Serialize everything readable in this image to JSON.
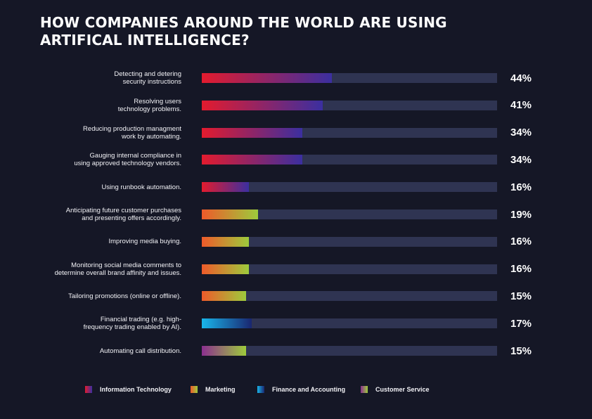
{
  "title_lines": [
    "HOW COMPANIES AROUND THE WORLD ARE USING",
    "ARTIFICAL INTELLIGENCE?"
  ],
  "colors": {
    "background": "#151726",
    "track": "#2f3452",
    "information_technology": [
      "#e31b2e",
      "#3b2fa0"
    ],
    "marketing": [
      "#ee5a2a",
      "#9ecb3c"
    ],
    "finance_and_accounting": [
      "#19b6ea",
      "#1a2670"
    ],
    "customer_service": [
      "#8b2f8f",
      "#9ecb3c"
    ]
  },
  "chart_data": {
    "type": "bar",
    "orientation": "horizontal",
    "unit": "%",
    "xlim": [
      0,
      100
    ],
    "grid": false,
    "legend_position": "bottom",
    "categories": [
      "Detecting and detering\nsecurity instructions",
      "Resolving users\ntechnology problems.",
      "Reducing production managment\nwork by automating.",
      "Gauging internal compliance in\nusing approved technology vendors.",
      "Using runbook automation.",
      "Anticipating future customer purchases\nand presenting offers accordingly.",
      "Improving media buying.",
      "Monitoring social media comments to\ndetermine overall brand affinity and issues.",
      "Tailoring promotions (online or offline).",
      "Financial trading (e.g. high-\nfrequency trading enabled by AI).",
      "Automating call distribution."
    ],
    "values": [
      44,
      41,
      34,
      34,
      16,
      19,
      16,
      16,
      15,
      17,
      15
    ],
    "value_labels": [
      "44%",
      "41%",
      "34%",
      "34%",
      "16%",
      "19%",
      "16%",
      "16%",
      "15%",
      "17%",
      "15%"
    ],
    "category_series": [
      "Information Technology",
      "Information Technology",
      "Information Technology",
      "Information Technology",
      "Information Technology",
      "Marketing",
      "Marketing",
      "Marketing",
      "Marketing",
      "Finance and Accounting",
      "Customer Service"
    ],
    "legend": [
      "Information Technology",
      "Marketing",
      "Finance and Accounting",
      "Customer Service"
    ]
  }
}
